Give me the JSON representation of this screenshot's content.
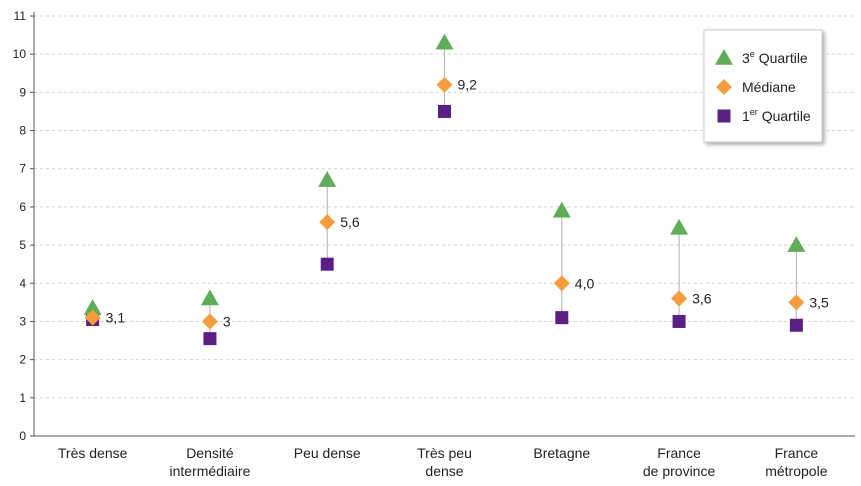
{
  "chart_data": {
    "type": "scatter",
    "categories": [
      [
        "Très dense"
      ],
      [
        "Densité",
        "intermédiaire"
      ],
      [
        "Peu dense"
      ],
      [
        "Très peu",
        "dense"
      ],
      [
        "Bretagne"
      ],
      [
        "France",
        "de province"
      ],
      [
        "France",
        "métropole"
      ]
    ],
    "ylim": [
      0,
      11
    ],
    "yticks": [
      0,
      1,
      2,
      3,
      4,
      5,
      6,
      7,
      8,
      9,
      10,
      11
    ],
    "grid": true,
    "series": [
      {
        "name": "3e Quartile",
        "name_base": "3",
        "name_sup": "e",
        "name_rest": " Quartile",
        "marker": "triangle",
        "color": "#5fad56",
        "values": [
          3.35,
          3.6,
          6.7,
          10.3,
          5.9,
          5.45,
          5.0
        ]
      },
      {
        "name": "Médiane",
        "name_base": "Médiane",
        "name_sup": "",
        "name_rest": "",
        "marker": "diamond",
        "color": "#f59d3d",
        "values": [
          3.1,
          3.0,
          5.6,
          9.2,
          4.0,
          3.6,
          3.5
        ]
      },
      {
        "name": "1er Quartile",
        "name_base": "1",
        "name_sup": "er",
        "name_rest": " Quartile",
        "marker": "square",
        "color": "#5a1f84",
        "values": [
          3.05,
          2.55,
          4.5,
          8.5,
          3.1,
          3.0,
          2.9
        ]
      }
    ],
    "data_labels": [
      "3,1",
      "3",
      "5,6",
      "9,2",
      "4,0",
      "3,6",
      "3,5"
    ],
    "legend_position": "top-right"
  }
}
